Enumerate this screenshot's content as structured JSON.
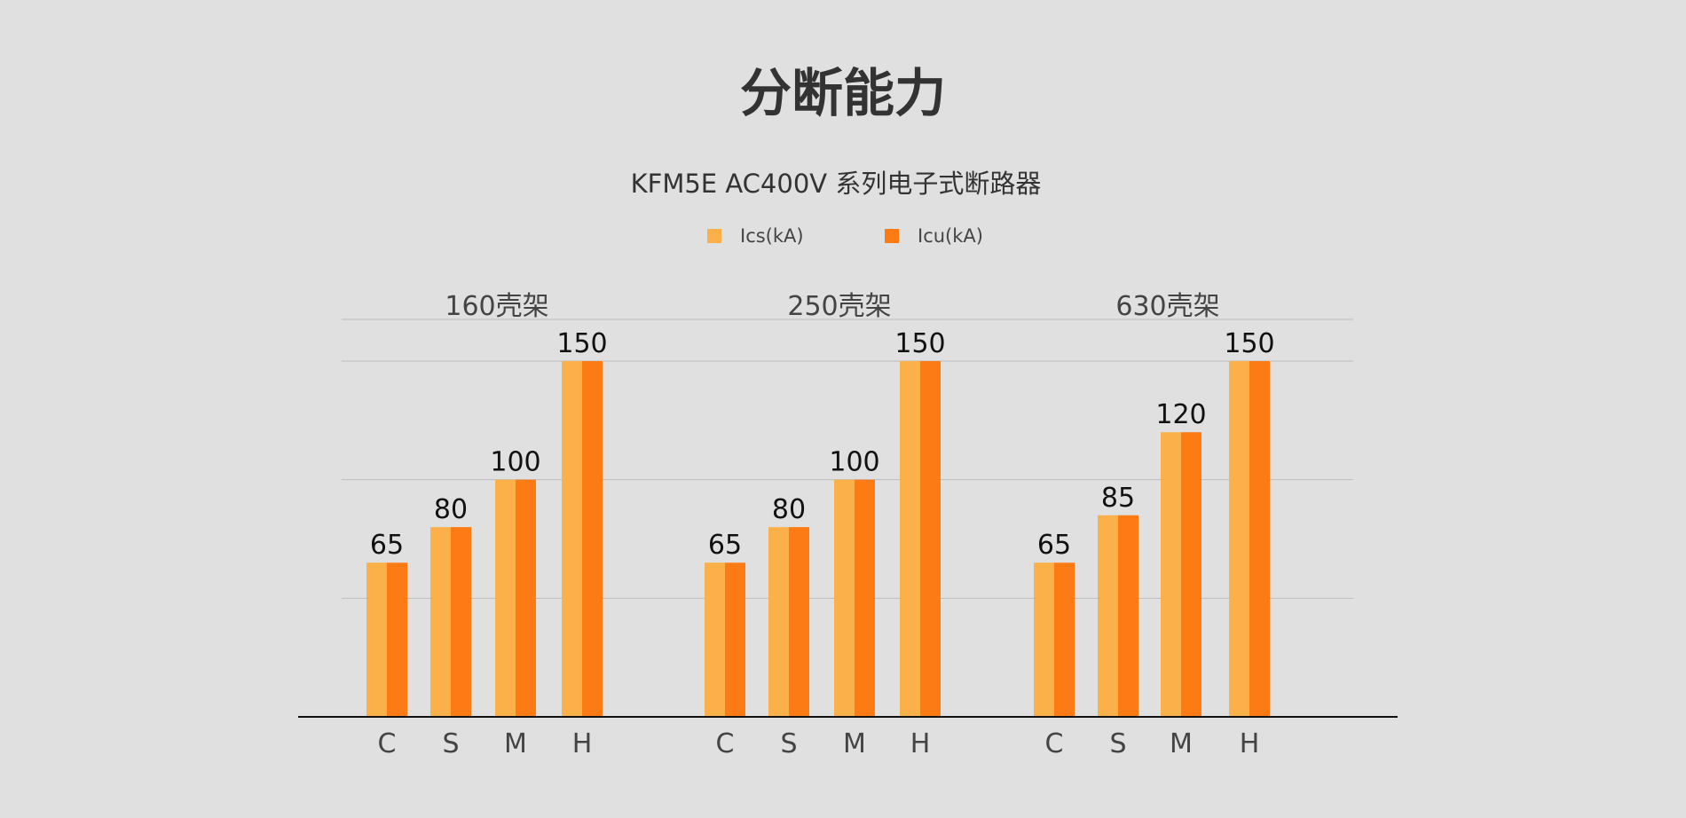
{
  "title": "分断能力",
  "subtitle": "KFM5E AC400V 系列电子式断路器",
  "colors": {
    "background": "#e0e0e0",
    "ics": "#fbb04a",
    "icu": "#fc7b14",
    "title_text": "#333333",
    "group_text": "#444444",
    "value_text": "#111111",
    "grid": "#bdbdbd",
    "axis": "#111111"
  },
  "chart_data": {
    "type": "bar",
    "title": "分断能力",
    "subtitle": "KFM5E AC400V 系列电子式断路器",
    "legend_placement": "top-center",
    "grid": true,
    "ylim": [
      0,
      150
    ],
    "series": [
      {
        "name": "Ics(kA)"
      },
      {
        "name": "Icu(kA)"
      }
    ],
    "groups": [
      {
        "label": "160壳架",
        "categories": [
          "C",
          "S",
          "M",
          "H"
        ],
        "values": [
          65,
          80,
          100,
          150
        ]
      },
      {
        "label": "250壳架",
        "categories": [
          "C",
          "S",
          "M",
          "H"
        ],
        "values": [
          65,
          80,
          100,
          150
        ]
      },
      {
        "label": "630壳架",
        "categories": [
          "C",
          "S",
          "M",
          "H"
        ],
        "values": [
          65,
          85,
          120,
          150
        ]
      }
    ]
  }
}
